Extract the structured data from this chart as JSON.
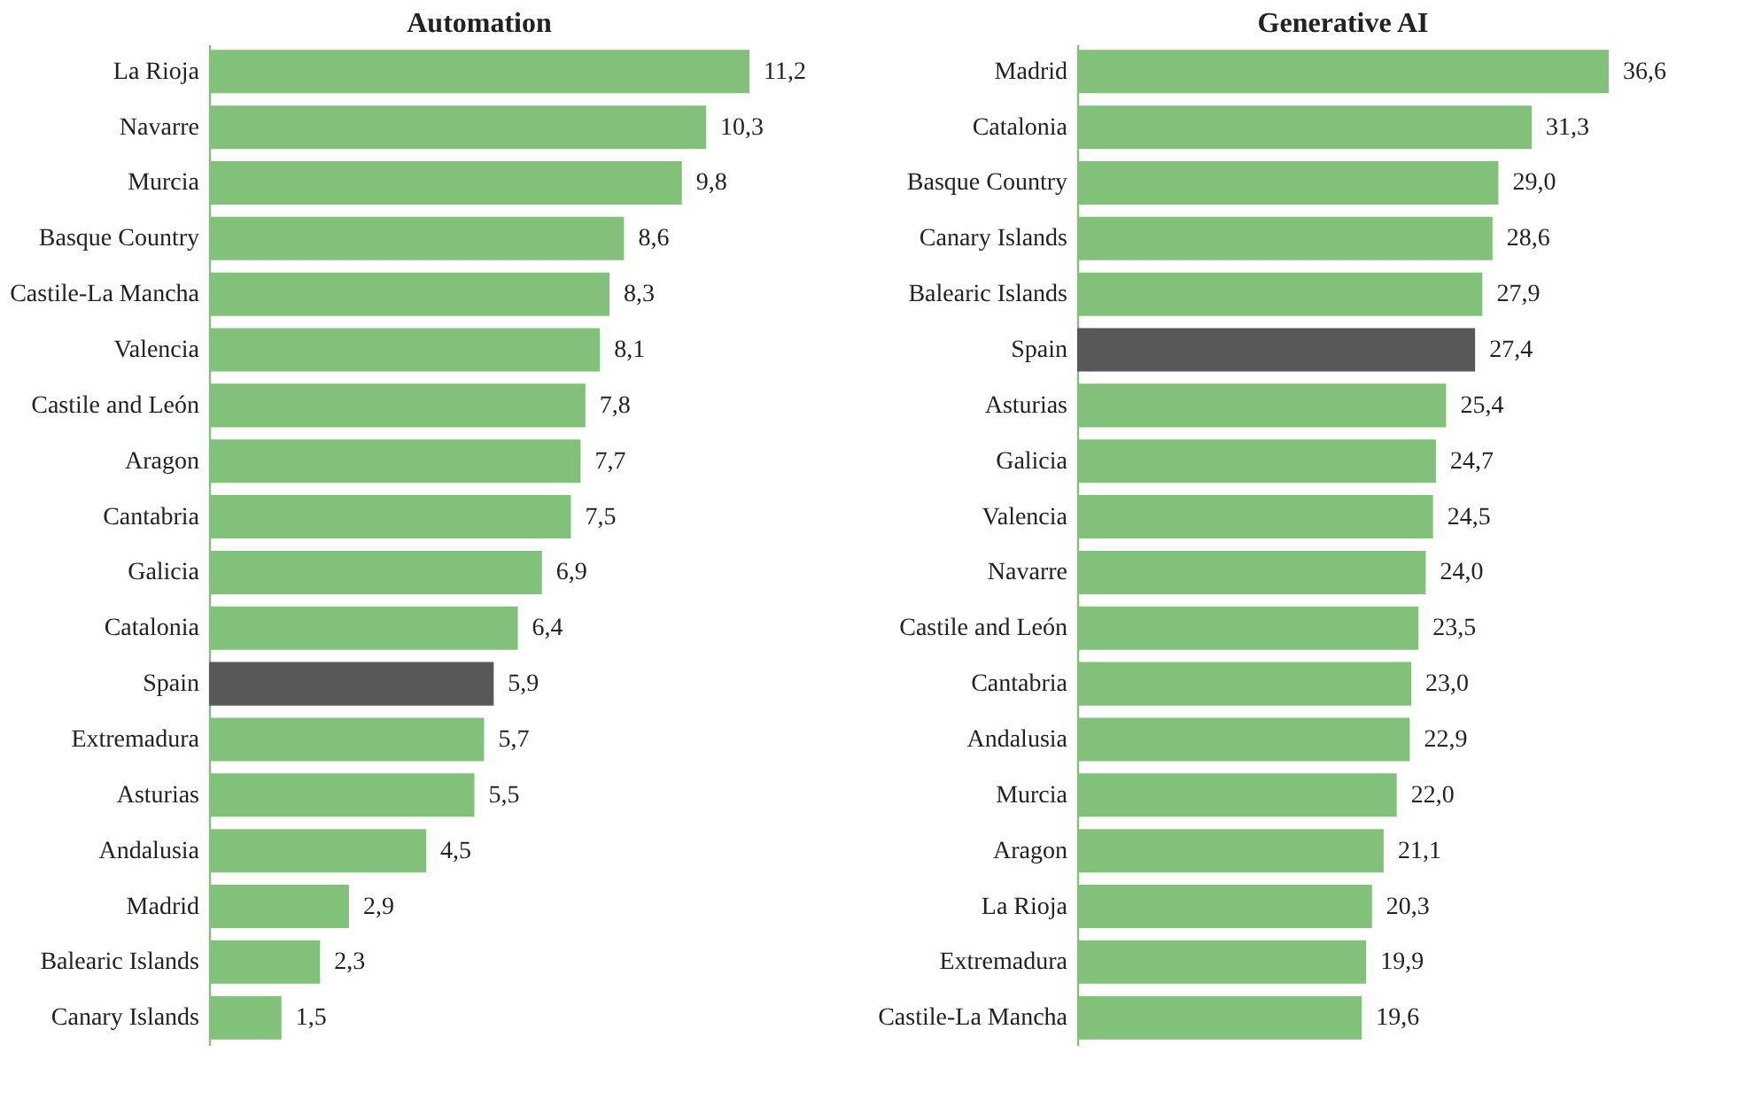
{
  "chart_data": [
    {
      "type": "bar",
      "orientation": "horizontal",
      "title": "Automation",
      "categories": [
        "La Rioja",
        "Navarre",
        "Murcia",
        "Basque Country",
        "Castile-La Mancha",
        "Valencia",
        "Castile and León",
        "Aragon",
        "Cantabria",
        "Galicia",
        "Catalonia",
        "Spain",
        "Extremadura",
        "Asturias",
        "Andalusia",
        "Madrid",
        "Balearic Islands",
        "Canary Islands"
      ],
      "values": [
        11.2,
        10.3,
        9.8,
        8.6,
        8.3,
        8.1,
        7.8,
        7.7,
        7.5,
        6.9,
        6.4,
        5.9,
        5.7,
        5.5,
        4.5,
        2.9,
        2.3,
        1.5
      ],
      "value_labels": [
        "11,2",
        "10,3",
        "9,8",
        "8,6",
        "8,3",
        "8,1",
        "7,8",
        "7,7",
        "7,5",
        "6,9",
        "6,4",
        "5,9",
        "5,7",
        "5,5",
        "4,5",
        "2,9",
        "2,3",
        "1,5"
      ],
      "colors": [
        "#82c17a",
        "#82c17a",
        "#82c17a",
        "#82c17a",
        "#82c17a",
        "#82c17a",
        "#82c17a",
        "#82c17a",
        "#82c17a",
        "#82c17a",
        "#82c17a",
        "#58585a",
        "#82c17a",
        "#82c17a",
        "#82c17a",
        "#82c17a",
        "#82c17a",
        "#82c17a"
      ],
      "tick_labels": "y",
      "grid": false
    },
    {
      "type": "bar",
      "orientation": "horizontal",
      "title": "Generative AI",
      "categories": [
        "Madrid",
        "Catalonia",
        "Basque Country",
        "Canary Islands",
        "Balearic Islands",
        "Spain",
        "Asturias",
        "Galicia",
        "Valencia",
        "Navarre",
        "Castile and León",
        "Cantabria",
        "Andalusia",
        "Murcia",
        "Aragon",
        "La Rioja",
        "Extremadura",
        "Castile-La Mancha"
      ],
      "values": [
        36.6,
        31.3,
        29.0,
        28.6,
        27.9,
        27.4,
        25.4,
        24.7,
        24.5,
        24.0,
        23.5,
        23.0,
        22.9,
        22.0,
        21.1,
        20.3,
        19.9,
        19.6
      ],
      "value_labels": [
        "36,6",
        "31,3",
        "29,0",
        "28,6",
        "27,9",
        "27,4",
        "25,4",
        "24,7",
        "24,5",
        "24,0",
        "23,5",
        "23,0",
        "22,9",
        "22,0",
        "21,1",
        "20,3",
        "19,9",
        "19,6"
      ],
      "colors": [
        "#82c17a",
        "#82c17a",
        "#82c17a",
        "#82c17a",
        "#82c17a",
        "#58585a",
        "#82c17a",
        "#82c17a",
        "#82c17a",
        "#82c17a",
        "#82c17a",
        "#82c17a",
        "#82c17a",
        "#82c17a",
        "#82c17a",
        "#82c17a",
        "#82c17a",
        "#82c17a"
      ],
      "tick_labels": "y",
      "grid": false
    }
  ]
}
